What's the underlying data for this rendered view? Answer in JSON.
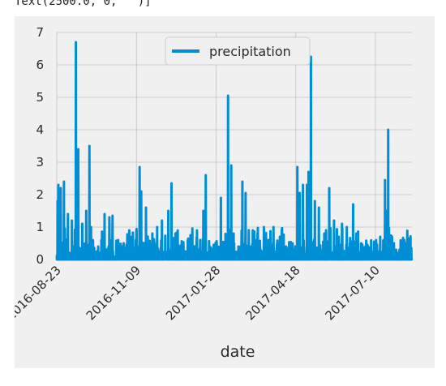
{
  "output_text": "Text(2500.0, 0, '')]",
  "chart_data": {
    "type": "line",
    "xlabel": "date",
    "ylabel": "",
    "ylim": [
      0,
      7
    ],
    "yticks": [
      0,
      1,
      2,
      3,
      4,
      5,
      6,
      7
    ],
    "x_tick_labels": [
      "2016-08-23",
      "2016-11-09",
      "2017-01-28",
      "2017-04-18",
      "2017-07-10"
    ],
    "x_tick_index": [
      0,
      500,
      1000,
      1500,
      2000
    ],
    "n_points": 2230,
    "legend_position": "upper center",
    "grid": true,
    "series": [
      {
        "name": "precipitation",
        "color": "#008fd5",
        "peaks": [
          {
            "x": 5,
            "y": 1.8
          },
          {
            "x": 10,
            "y": 2.3
          },
          {
            "x": 25,
            "y": 2.2
          },
          {
            "x": 45,
            "y": 2.4
          },
          {
            "x": 70,
            "y": 1.4
          },
          {
            "x": 95,
            "y": 1.2
          },
          {
            "x": 120,
            "y": 6.7
          },
          {
            "x": 135,
            "y": 3.4
          },
          {
            "x": 160,
            "y": 1.1
          },
          {
            "x": 185,
            "y": 1.5
          },
          {
            "x": 205,
            "y": 3.5
          },
          {
            "x": 215,
            "y": 1.0
          },
          {
            "x": 260,
            "y": 0.4
          },
          {
            "x": 280,
            "y": 0.6
          },
          {
            "x": 300,
            "y": 1.4
          },
          {
            "x": 330,
            "y": 1.3
          },
          {
            "x": 350,
            "y": 1.35
          },
          {
            "x": 385,
            "y": 0.6
          },
          {
            "x": 420,
            "y": 0.5
          },
          {
            "x": 455,
            "y": 0.9
          },
          {
            "x": 470,
            "y": 0.7
          },
          {
            "x": 480,
            "y": 0.4
          },
          {
            "x": 500,
            "y": 0.9
          },
          {
            "x": 520,
            "y": 2.85
          },
          {
            "x": 530,
            "y": 2.1
          },
          {
            "x": 560,
            "y": 1.6
          },
          {
            "x": 580,
            "y": 0.5
          },
          {
            "x": 600,
            "y": 0.8
          },
          {
            "x": 630,
            "y": 1.0
          },
          {
            "x": 660,
            "y": 1.2
          },
          {
            "x": 700,
            "y": 1.5
          },
          {
            "x": 720,
            "y": 2.35
          },
          {
            "x": 745,
            "y": 0.8
          },
          {
            "x": 780,
            "y": 0.1
          },
          {
            "x": 830,
            "y": 0.1
          },
          {
            "x": 880,
            "y": 0.9
          },
          {
            "x": 900,
            "y": 0.6
          },
          {
            "x": 920,
            "y": 1.5
          },
          {
            "x": 935,
            "y": 2.6
          },
          {
            "x": 960,
            "y": 0.4
          },
          {
            "x": 990,
            "y": 0.2
          },
          {
            "x": 1030,
            "y": 1.9
          },
          {
            "x": 1075,
            "y": 5.05
          },
          {
            "x": 1095,
            "y": 2.9
          },
          {
            "x": 1110,
            "y": 0.8
          },
          {
            "x": 1140,
            "y": 0.4
          },
          {
            "x": 1165,
            "y": 2.4
          },
          {
            "x": 1185,
            "y": 2.05
          },
          {
            "x": 1230,
            "y": 0.9
          },
          {
            "x": 1260,
            "y": 0.8
          },
          {
            "x": 1300,
            "y": 1.0
          },
          {
            "x": 1330,
            "y": 0.6
          },
          {
            "x": 1360,
            "y": 1.0
          },
          {
            "x": 1400,
            "y": 0.7
          },
          {
            "x": 1440,
            "y": 0.3
          },
          {
            "x": 1480,
            "y": 0.5
          },
          {
            "x": 1510,
            "y": 2.85
          },
          {
            "x": 1525,
            "y": 2.05
          },
          {
            "x": 1545,
            "y": 2.3
          },
          {
            "x": 1570,
            "y": 2.3
          },
          {
            "x": 1580,
            "y": 2.7
          },
          {
            "x": 1595,
            "y": 6.25
          },
          {
            "x": 1620,
            "y": 1.8
          },
          {
            "x": 1645,
            "y": 1.6
          },
          {
            "x": 1680,
            "y": 0.8
          },
          {
            "x": 1710,
            "y": 2.2
          },
          {
            "x": 1740,
            "y": 1.2
          },
          {
            "x": 1770,
            "y": 0.7
          },
          {
            "x": 1790,
            "y": 1.1
          },
          {
            "x": 1820,
            "y": 1.0
          },
          {
            "x": 1860,
            "y": 1.7
          },
          {
            "x": 1880,
            "y": 0.8
          },
          {
            "x": 1910,
            "y": 0.5
          },
          {
            "x": 1950,
            "y": 0.3
          },
          {
            "x": 2000,
            "y": 0.3
          },
          {
            "x": 2030,
            "y": 0.7
          },
          {
            "x": 2060,
            "y": 2.45
          },
          {
            "x": 2070,
            "y": 1.5
          },
          {
            "x": 2080,
            "y": 4.0
          },
          {
            "x": 2100,
            "y": 0.5
          },
          {
            "x": 2130,
            "y": 0.3
          },
          {
            "x": 2160,
            "y": 0.4
          },
          {
            "x": 2190,
            "y": 0.5
          },
          {
            "x": 2210,
            "y": 0.55
          },
          {
            "x": 2225,
            "y": 0.35
          }
        ]
      }
    ]
  }
}
